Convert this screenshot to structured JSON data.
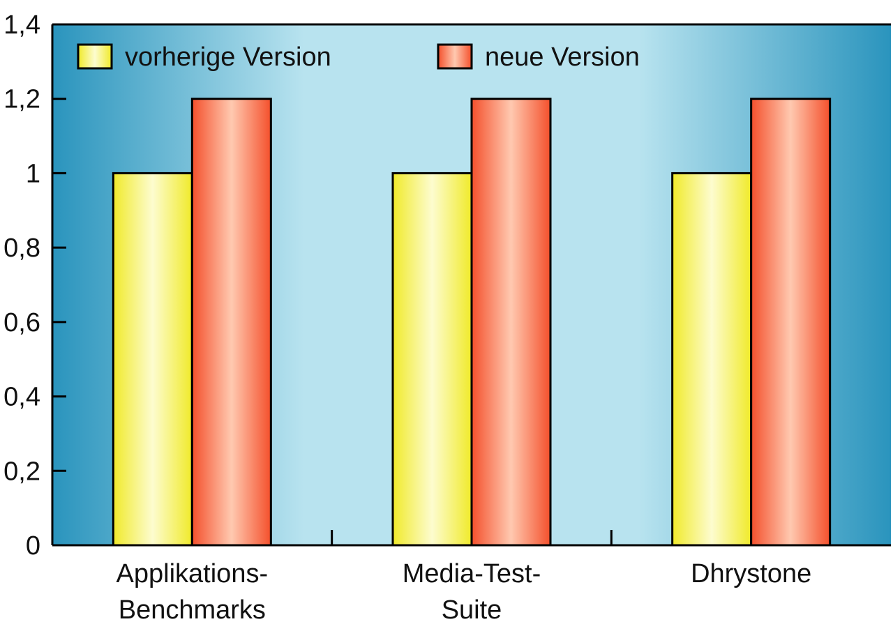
{
  "chart_data": {
    "type": "bar",
    "categories": [
      [
        "Applikations-",
        "Benchmarks"
      ],
      [
        "Media-Test-",
        "Suite"
      ],
      [
        "Dhrystone"
      ]
    ],
    "series": [
      {
        "name": "vorherige Version",
        "values": [
          1,
          1,
          1
        ],
        "color": "#f0ea2a",
        "highlight": "#fdfccf"
      },
      {
        "name": "neue Version",
        "values": [
          1.2,
          1.2,
          1.2
        ],
        "color": "#f4502c",
        "highlight": "#ffc9b0"
      }
    ],
    "ylim": [
      0,
      1.4
    ],
    "yticks": [
      "0",
      "0,2",
      "0,4",
      "0,6",
      "0,8",
      "1",
      "1,2",
      "1,4"
    ],
    "legend_position": "top",
    "grid": false,
    "background": {
      "edge": "#2a94bd",
      "center": "#b8e3ef"
    }
  }
}
